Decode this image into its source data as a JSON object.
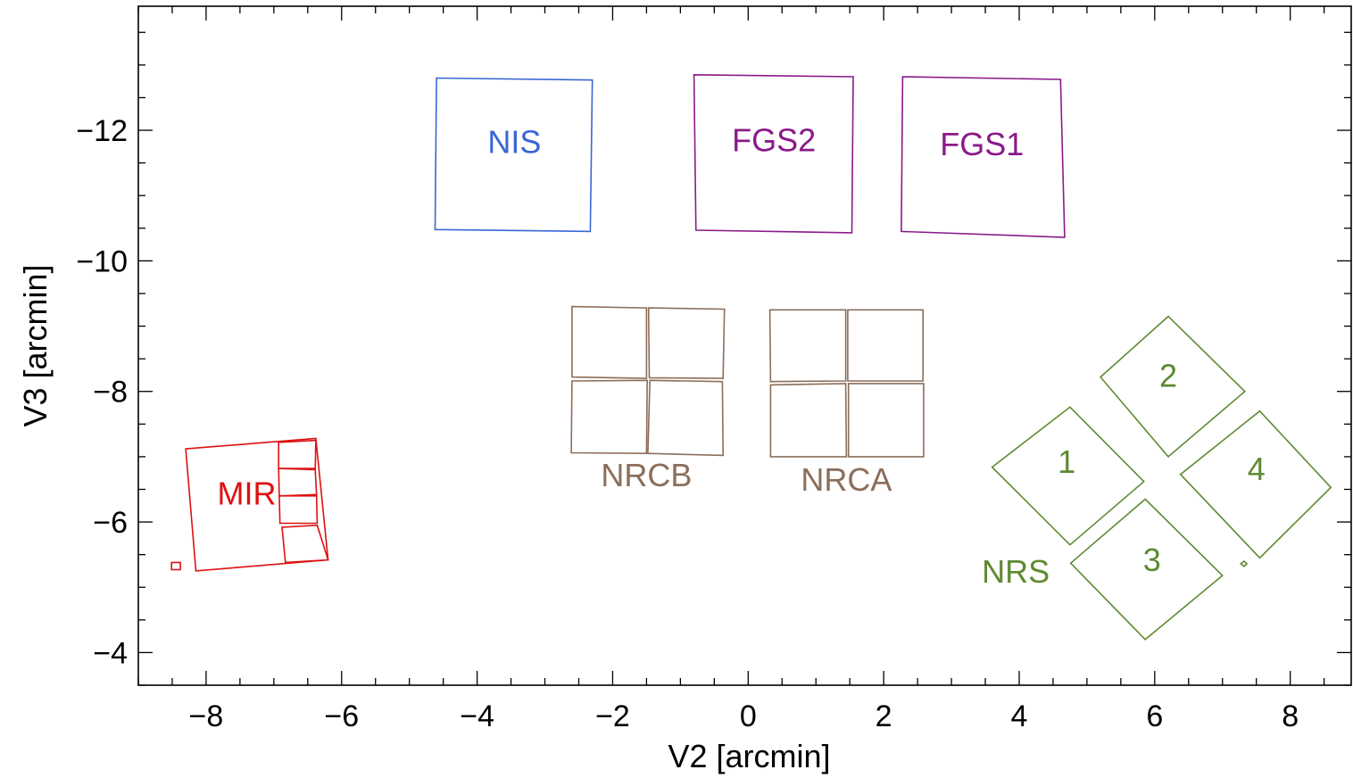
{
  "chart_data": {
    "type": "scatter",
    "title": "",
    "xlabel": "V2  [arcmin]",
    "ylabel": "V3  [arcmin]",
    "xlim": [
      -9,
      8.9
    ],
    "ylim": [
      -13.9,
      -3.5
    ],
    "y_inverted": true,
    "grid": false,
    "x_ticks": [
      -8,
      -6,
      -4,
      -2,
      0,
      2,
      4,
      6,
      8
    ],
    "x_tick_labels": [
      "−8",
      "−6",
      "−4",
      "−2",
      "0",
      "2",
      "4",
      "6",
      "8"
    ],
    "y_ticks": [
      -12,
      -10,
      -8,
      -6,
      -4
    ],
    "y_tick_labels": [
      "−12",
      "−10",
      "−8",
      "−6",
      "−4"
    ],
    "instruments": [
      {
        "name": "NIS",
        "color": "#3a66d6",
        "polygons": [
          [
            [
              -4.6,
              -12.8
            ],
            [
              -2.3,
              -12.77
            ],
            [
              -2.33,
              -10.45
            ],
            [
              -4.62,
              -10.48
            ]
          ]
        ],
        "labels": [
          {
            "text": "NIS",
            "x": -3.45,
            "y": -11.65
          }
        ]
      },
      {
        "name": "FGS2",
        "color": "#8a1a8a",
        "polygons": [
          [
            [
              -0.8,
              -12.85
            ],
            [
              1.55,
              -12.82
            ],
            [
              1.53,
              -10.43
            ],
            [
              -0.77,
              -10.47
            ]
          ]
        ],
        "labels": [
          {
            "text": "FGS2",
            "x": 0.38,
            "y": -11.68
          }
        ]
      },
      {
        "name": "FGS1",
        "color": "#8a1a8a",
        "polygons": [
          [
            [
              2.28,
              -12.82
            ],
            [
              4.61,
              -12.78
            ],
            [
              4.67,
              -10.36
            ],
            [
              2.26,
              -10.45
            ]
          ]
        ],
        "labels": [
          {
            "text": "FGS1",
            "x": 3.45,
            "y": -11.62
          }
        ]
      },
      {
        "name": "NRCB",
        "color": "#8b6e5a",
        "polygons": [
          [
            [
              -2.6,
              -9.3
            ],
            [
              -1.5,
              -9.28
            ],
            [
              -1.5,
              -8.2
            ],
            [
              -2.6,
              -8.22
            ]
          ],
          [
            [
              -1.47,
              -9.28
            ],
            [
              -0.35,
              -9.26
            ],
            [
              -0.37,
              -8.2
            ],
            [
              -1.46,
              -8.21
            ]
          ],
          [
            [
              -2.6,
              -8.16
            ],
            [
              -1.49,
              -8.17
            ],
            [
              -1.5,
              -7.05
            ],
            [
              -2.61,
              -7.06
            ]
          ],
          [
            [
              -1.45,
              -8.17
            ],
            [
              -0.38,
              -8.15
            ],
            [
              -0.37,
              -7.02
            ],
            [
              -1.48,
              -7.05
            ]
          ]
        ],
        "labels": [
          {
            "text": "NRCB",
            "x": -1.5,
            "y": -6.55
          }
        ]
      },
      {
        "name": "NRCA",
        "color": "#8b6e5a",
        "polygons": [
          [
            [
              0.32,
              -9.25
            ],
            [
              1.44,
              -9.25
            ],
            [
              1.44,
              -8.16
            ],
            [
              0.33,
              -8.15
            ]
          ],
          [
            [
              1.47,
              -9.25
            ],
            [
              2.58,
              -9.25
            ],
            [
              2.58,
              -8.16
            ],
            [
              1.47,
              -8.16
            ]
          ],
          [
            [
              0.33,
              -8.1
            ],
            [
              1.44,
              -8.12
            ],
            [
              1.45,
              -7.0
            ],
            [
              0.33,
              -7.0
            ]
          ],
          [
            [
              1.48,
              -8.12
            ],
            [
              2.59,
              -8.12
            ],
            [
              2.59,
              -7.0
            ],
            [
              1.48,
              -7.0
            ]
          ]
        ],
        "labels": [
          {
            "text": "NRCA",
            "x": 1.45,
            "y": -6.48
          }
        ]
      },
      {
        "name": "MIR",
        "color": "#dd1111",
        "polygons": [
          [
            [
              -8.3,
              -7.12
            ],
            [
              -6.38,
              -7.28
            ],
            [
              -6.2,
              -5.42
            ],
            [
              -8.15,
              -5.25
            ]
          ],
          [
            [
              -6.93,
              -7.22
            ],
            [
              -6.38,
              -7.25
            ],
            [
              -6.39,
              -6.82
            ],
            [
              -6.93,
              -6.82
            ]
          ],
          [
            [
              -6.93,
              -6.82
            ],
            [
              -6.39,
              -6.8
            ],
            [
              -6.37,
              -6.42
            ],
            [
              -6.92,
              -6.4
            ]
          ],
          [
            [
              -6.92,
              -6.4
            ],
            [
              -6.37,
              -6.4
            ],
            [
              -6.36,
              -5.98
            ],
            [
              -6.91,
              -5.98
            ]
          ],
          [
            [
              -6.88,
              -5.92
            ],
            [
              -6.36,
              -5.95
            ],
            [
              -6.2,
              -5.42
            ],
            [
              -6.83,
              -5.38
            ]
          ],
          [
            [
              -8.51,
              -5.38
            ],
            [
              -8.38,
              -5.38
            ],
            [
              -8.38,
              -5.27
            ],
            [
              -8.51,
              -5.27
            ]
          ]
        ],
        "labels": [
          {
            "text": "MIR",
            "x": -7.4,
            "y": -6.27
          }
        ]
      },
      {
        "name": "NRS",
        "color": "#5e8a32",
        "polygons": [
          [
            [
              5.2,
              -8.22
            ],
            [
              6.2,
              -9.15
            ],
            [
              7.33,
              -8.0
            ],
            [
              6.2,
              -7.0
            ]
          ],
          [
            [
              3.6,
              -6.84
            ],
            [
              4.75,
              -7.76
            ],
            [
              5.84,
              -6.62
            ],
            [
              4.75,
              -5.65
            ]
          ],
          [
            [
              6.38,
              -6.73
            ],
            [
              7.55,
              -7.7
            ],
            [
              8.6,
              -6.53
            ],
            [
              7.55,
              -5.45
            ]
          ],
          [
            [
              4.76,
              -5.37
            ],
            [
              5.86,
              -6.35
            ],
            [
              7.0,
              -5.18
            ],
            [
              5.86,
              -4.2
            ]
          ],
          [
            [
              7.27,
              -5.36
            ],
            [
              7.32,
              -5.4
            ],
            [
              7.36,
              -5.36
            ],
            [
              7.32,
              -5.32
            ]
          ]
        ],
        "labels": [
          {
            "text": "2",
            "x": 6.2,
            "y": -8.07
          },
          {
            "text": "1",
            "x": 4.7,
            "y": -6.75
          },
          {
            "text": "4",
            "x": 7.5,
            "y": -6.64
          },
          {
            "text": "3",
            "x": 5.96,
            "y": -5.25
          },
          {
            "text": "NRS",
            "x": 3.95,
            "y": -5.07
          }
        ]
      }
    ]
  }
}
